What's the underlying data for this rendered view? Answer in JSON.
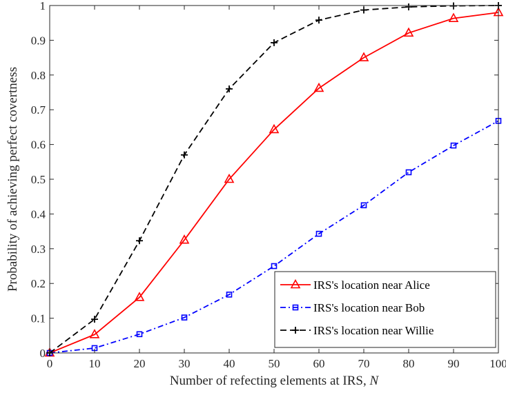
{
  "chart_data": {
    "type": "line",
    "xlabel": "Number of refecting elements at IRS,",
    "xlabel_var": "N",
    "ylabel": "Probability of achieving perfect covertness",
    "xlim": [
      0,
      100
    ],
    "ylim": [
      0,
      1
    ],
    "x_ticks": [
      "0",
      "10",
      "20",
      "30",
      "40",
      "50",
      "60",
      "70",
      "80",
      "90",
      "100"
    ],
    "y_ticks": [
      "0",
      "0.1",
      "0.2",
      "0.3",
      "0.4",
      "0.5",
      "0.6",
      "0.7",
      "0.8",
      "0.9",
      "1"
    ],
    "grid": false,
    "legend_position": "bottom-right",
    "x": [
      0,
      10,
      20,
      30,
      40,
      50,
      60,
      70,
      80,
      90,
      100
    ],
    "series": [
      {
        "name": "IRS's location near Alice",
        "values": [
          0,
          0.053,
          0.16,
          0.325,
          0.5,
          0.643,
          0.762,
          0.85,
          0.921,
          0.963,
          0.98
        ],
        "color": "#ff0000",
        "line_style": "solid",
        "marker": "triangle"
      },
      {
        "name": "IRS's location near Bob",
        "values": [
          0,
          0.014,
          0.054,
          0.102,
          0.168,
          0.25,
          0.343,
          0.425,
          0.52,
          0.597,
          0.668
        ],
        "color": "#0000ff",
        "line_style": "dash-dot",
        "marker": "square"
      },
      {
        "name": "IRS's location near Willie",
        "values": [
          0,
          0.097,
          0.323,
          0.57,
          0.76,
          0.893,
          0.958,
          0.987,
          0.996,
          0.999,
          1.0
        ],
        "color": "#000000",
        "line_style": "dashed",
        "marker": "plus"
      }
    ]
  }
}
